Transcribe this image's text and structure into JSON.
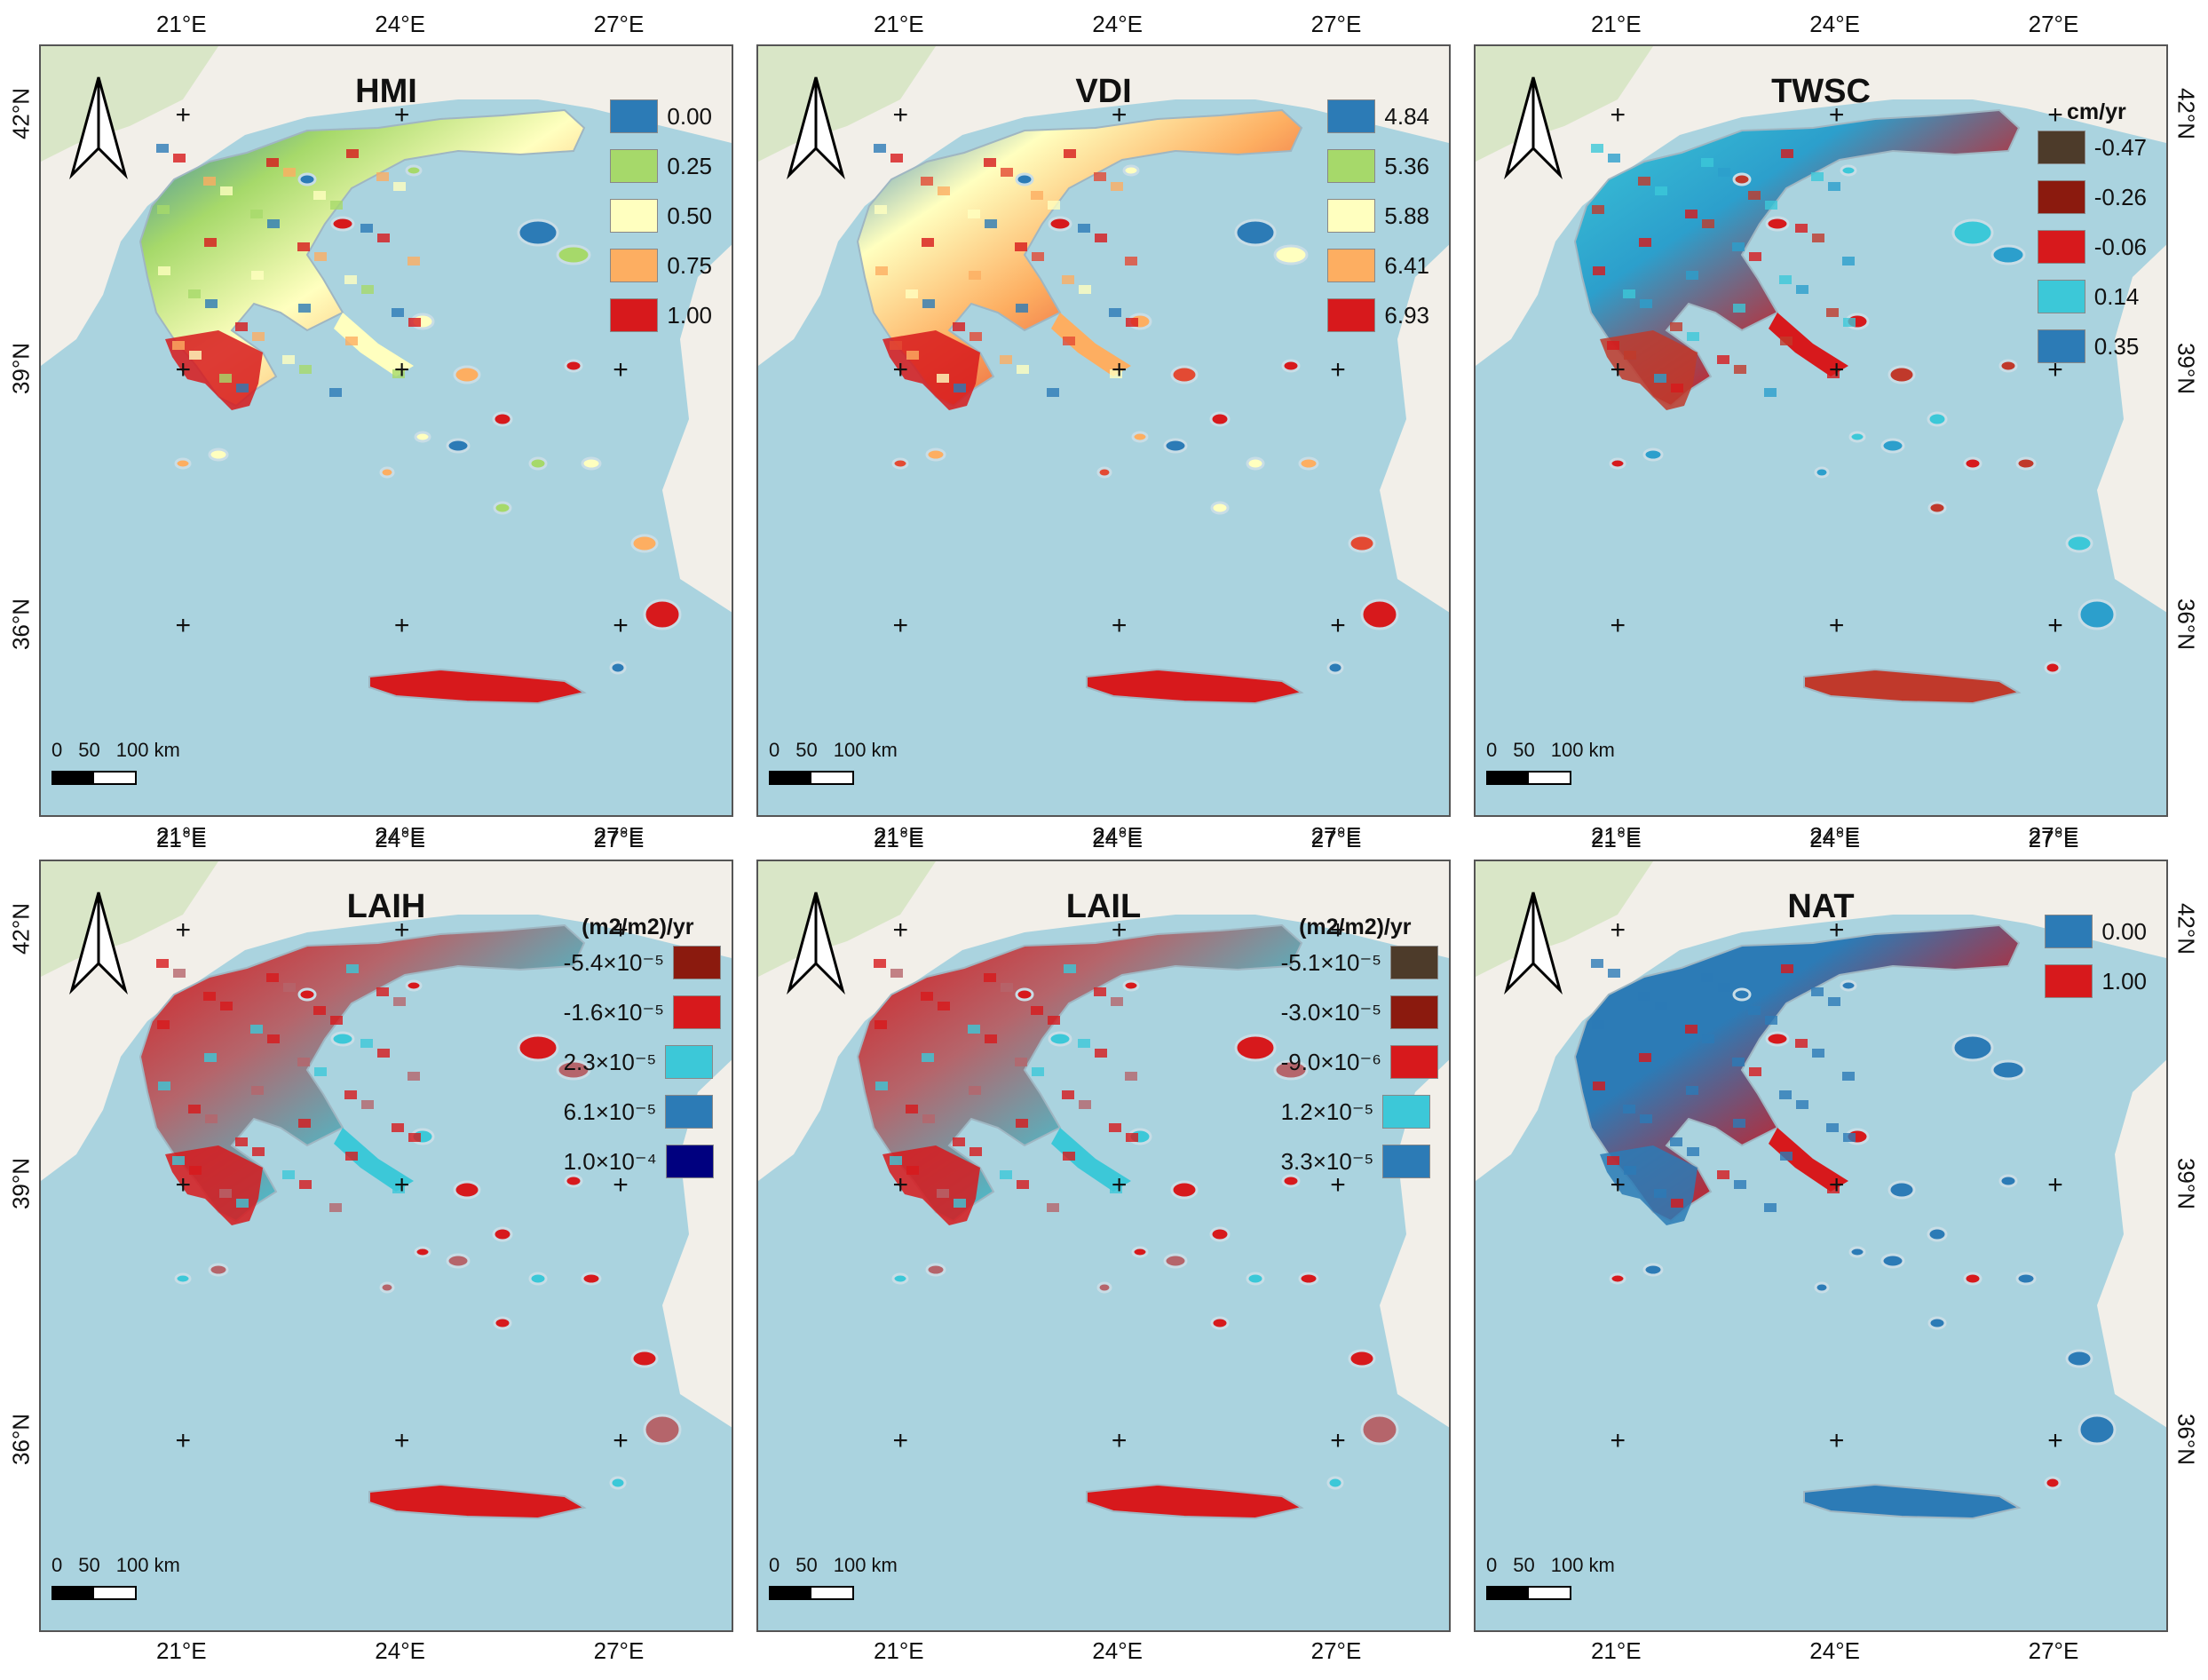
{
  "axes": {
    "lon_labels": [
      "21°E",
      "24°E",
      "27°E"
    ],
    "lat_labels": [
      "42°N",
      "39°N",
      "36°N"
    ]
  },
  "colors": {
    "sea": "#aad3df",
    "land": "#f2efe9",
    "land_green": "#cfe3b8"
  },
  "panels": [
    {
      "id": "hmi",
      "title": "HMI",
      "legend_unit": "",
      "swatch_side": "left",
      "legend": [
        {
          "label": "0.00",
          "color": "#2c7bb6"
        },
        {
          "label": "0.25",
          "color": "#a6d96a"
        },
        {
          "label": "0.50",
          "color": "#ffffbf"
        },
        {
          "label": "0.75",
          "color": "#fdae61"
        },
        {
          "label": "1.00",
          "color": "#d7191c"
        }
      ],
      "fill_colors": [
        "#2c7bb6",
        "#a6d96a",
        "#ffffbf",
        "#fdae61",
        "#d7191c"
      ],
      "scale_labels": [
        "0",
        "50",
        "100 km"
      ]
    },
    {
      "id": "vdi",
      "title": "VDI",
      "legend_unit": "",
      "swatch_side": "left",
      "legend": [
        {
          "label": "4.84",
          "color": "#2c7bb6"
        },
        {
          "label": "5.36",
          "color": "#a6d96a"
        },
        {
          "label": "5.88",
          "color": "#ffffbf"
        },
        {
          "label": "6.41",
          "color": "#fdae61"
        },
        {
          "label": "6.93",
          "color": "#d7191c"
        }
      ],
      "fill_colors": [
        "#2c7bb6",
        "#ffffbf",
        "#fdae61",
        "#e34a33",
        "#d7191c"
      ],
      "scale_labels": [
        "0",
        "50",
        "100 km"
      ]
    },
    {
      "id": "twsc",
      "title": "TWSC",
      "legend_unit": "cm/yr",
      "swatch_side": "left",
      "legend": [
        {
          "label": "-0.47",
          "color": "#4d3b2a"
        },
        {
          "label": "-0.26",
          "color": "#8b1a0e"
        },
        {
          "label": "-0.06",
          "color": "#d7191c"
        },
        {
          "label": "0.14",
          "color": "#3cc8d8"
        },
        {
          "label": "0.35",
          "color": "#2c7bb6"
        }
      ],
      "fill_colors": [
        "#3cc8d8",
        "#2c9fcc",
        "#d7191c",
        "#c0392b"
      ],
      "scale_labels": [
        "0",
        "50",
        "100 km"
      ]
    },
    {
      "id": "laih",
      "title": "LAIH",
      "legend_unit": "(m2/m2)/yr",
      "swatch_side": "right",
      "legend": [
        {
          "label": "-5.4×10⁻⁵",
          "color": "#8b1a0e"
        },
        {
          "label": "-1.6×10⁻⁵",
          "color": "#d7191c"
        },
        {
          "label": "2.3×10⁻⁵",
          "color": "#3cc8d8"
        },
        {
          "label": "6.1×10⁻⁵",
          "color": "#2c7bb6"
        },
        {
          "label": "1.0×10⁻⁴",
          "color": "#00007f"
        }
      ],
      "fill_colors": [
        "#d7191c",
        "#b5656b",
        "#3cc8d8",
        "#d7191c"
      ],
      "scale_labels": [
        "0",
        "50",
        "100 km"
      ]
    },
    {
      "id": "lail",
      "title": "LAIL",
      "legend_unit": "(m2/m2)/yr",
      "swatch_side": "right",
      "legend": [
        {
          "label": "-5.1×10⁻⁵",
          "color": "#4d3b2a"
        },
        {
          "label": "-3.0×10⁻⁵",
          "color": "#8b1a0e"
        },
        {
          "label": "-9.0×10⁻⁶",
          "color": "#d7191c"
        },
        {
          "label": "1.2×10⁻⁵",
          "color": "#3cc8d8"
        },
        {
          "label": "3.3×10⁻⁵",
          "color": "#2c7bb6"
        }
      ],
      "fill_colors": [
        "#d7191c",
        "#b5656b",
        "#3cc8d8",
        "#d7191c"
      ],
      "scale_labels": [
        "0",
        "50",
        "100 km"
      ]
    },
    {
      "id": "nat",
      "title": "NAT",
      "legend_unit": "",
      "swatch_side": "left",
      "legend": [
        {
          "label": "0.00",
          "color": "#2c7bb6"
        },
        {
          "label": "1.00",
          "color": "#d7191c"
        }
      ],
      "fill_colors": [
        "#2c7bb6",
        "#2c7bb6",
        "#d7191c",
        "#2c7bb6"
      ],
      "scale_labels": [
        "0",
        "50",
        "100 km"
      ]
    }
  ]
}
